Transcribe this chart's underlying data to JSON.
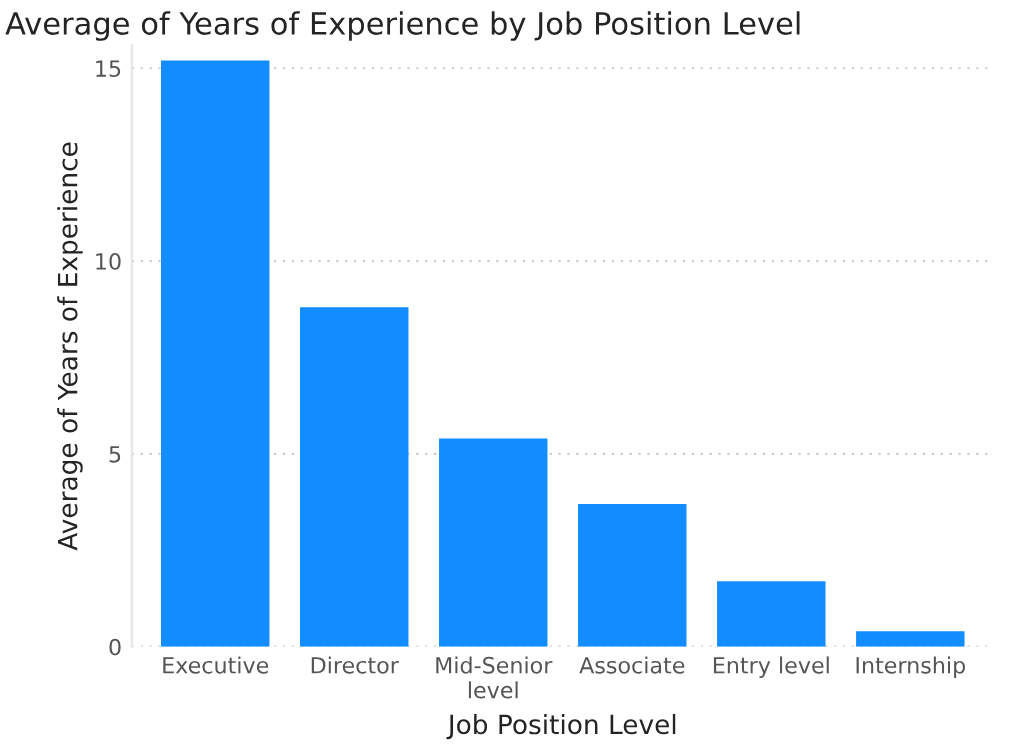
{
  "chart_data": {
    "type": "bar",
    "title": "Average of Years of Experience by Job Position Level",
    "xlabel": "Job Position Level",
    "ylabel": "Average of Years of Experience",
    "categories": [
      "Executive",
      "Director",
      "Mid-Senior level",
      "Associate",
      "Entry level",
      "Internship"
    ],
    "values": [
      15.2,
      8.8,
      5.4,
      3.7,
      1.7,
      0.4
    ],
    "color": "#118dff",
    "ylim": [
      0,
      15.6
    ],
    "yticks": [
      0,
      5,
      10,
      15
    ],
    "grid": "y"
  }
}
